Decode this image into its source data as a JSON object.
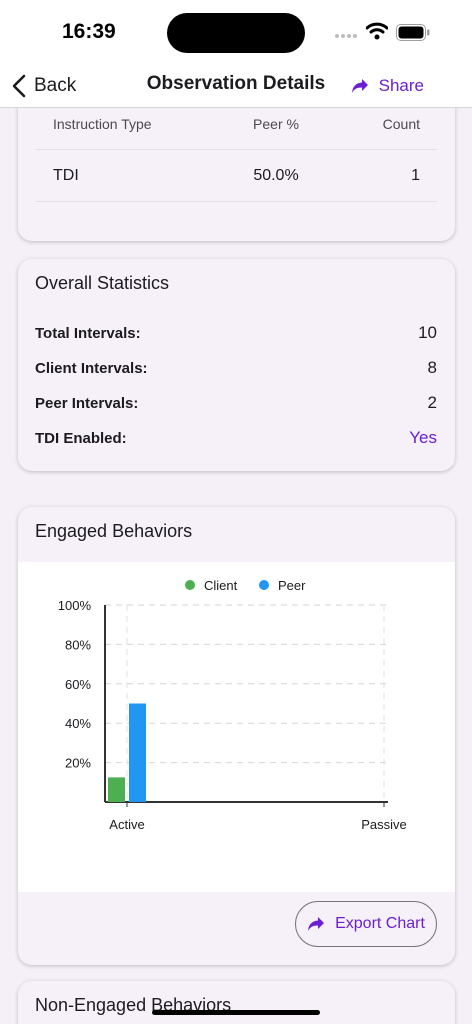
{
  "status_bar": {
    "time": "16:39"
  },
  "nav": {
    "back_label": "Back",
    "title": "Observation Details",
    "share_label": "Share"
  },
  "instruction_table": {
    "headers": [
      "Instruction Type",
      "Peer %",
      "Count"
    ],
    "rows": [
      {
        "type": "TDI",
        "peer_pct": "50.0%",
        "count": "1"
      }
    ]
  },
  "overall_statistics": {
    "title": "Overall Statistics",
    "rows": [
      {
        "label": "Total Intervals:",
        "value": "10"
      },
      {
        "label": "Client Intervals:",
        "value": "8"
      },
      {
        "label": "Peer Intervals:",
        "value": "2"
      },
      {
        "label": "TDI Enabled:",
        "value": "Yes"
      }
    ]
  },
  "engaged_behaviors": {
    "title": "Engaged Behaviors",
    "export_label": "Export Chart"
  },
  "chart_data": {
    "type": "bar",
    "categories": [
      "Active",
      "Passive"
    ],
    "series": [
      {
        "name": "Client",
        "values": [
          12.5,
          0
        ],
        "color": "#4caf50"
      },
      {
        "name": "Peer",
        "values": [
          50,
          0
        ],
        "color": "#2196f3"
      }
    ],
    "ylim": [
      0,
      100
    ],
    "yticks": [
      "20%",
      "40%",
      "60%",
      "80%",
      "100%"
    ],
    "ytick_values": [
      20,
      40,
      60,
      80,
      100
    ],
    "grid": true,
    "legend_position": "top-center",
    "title": "",
    "xlabel": "",
    "ylabel": ""
  },
  "next_section": {
    "title": "Non-Engaged Behaviors"
  },
  "colors": {
    "accent": "#6a1fd0",
    "card_bg": "#f6f0f8",
    "page_bg": "#f5f0f7"
  },
  "icons": {
    "back": "chevron-left-icon",
    "share": "share-arrow-icon",
    "export": "share-arrow-icon",
    "wifi": "wifi-icon",
    "battery": "battery-icon",
    "signal": "signal-dots-icon"
  }
}
